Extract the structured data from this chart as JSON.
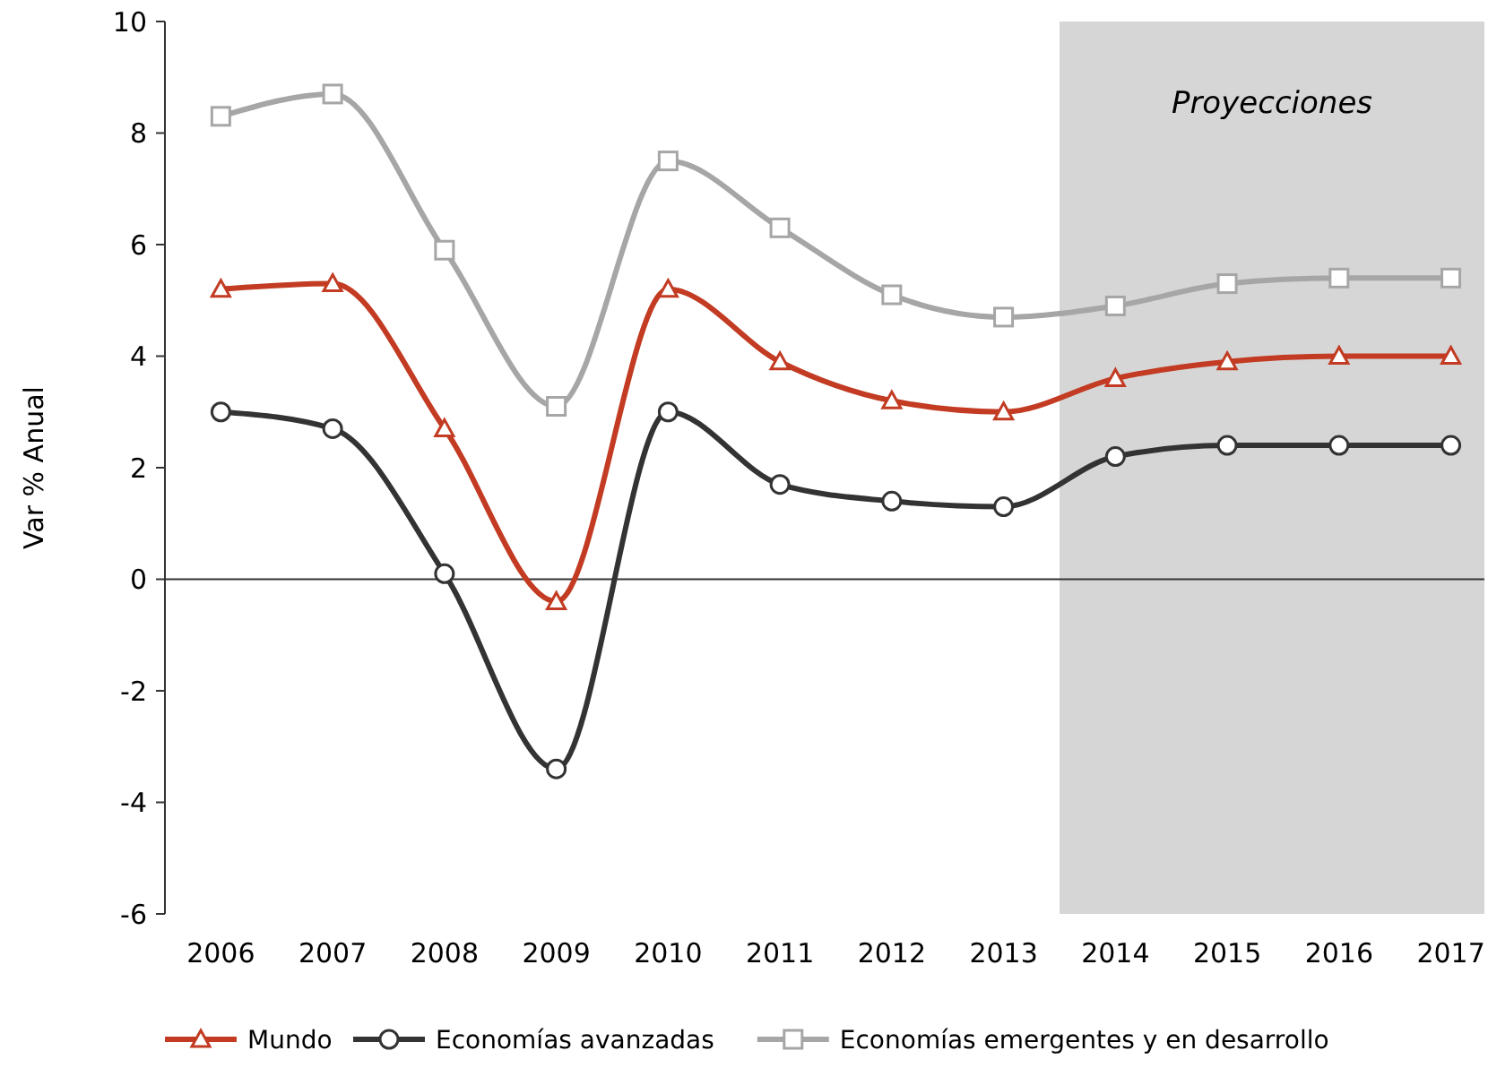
{
  "chart_data": {
    "type": "line",
    "ylabel": "Var % Anual",
    "x": [
      2006,
      2007,
      2008,
      2009,
      2010,
      2011,
      2012,
      2013,
      2014,
      2015,
      2016,
      2017
    ],
    "xlim": [
      2005.5,
      2017.3
    ],
    "xticks": [
      2006,
      2007,
      2008,
      2009,
      2010,
      2011,
      2012,
      2013,
      2014,
      2015,
      2016,
      2017
    ],
    "ylim": [
      -6,
      10
    ],
    "yticks": [
      -6,
      -4,
      -2,
      0,
      2,
      4,
      6,
      8,
      10
    ],
    "grid": false,
    "ref_lines": [
      {
        "axis": "y",
        "value": 0,
        "color": "#333333"
      }
    ],
    "legend": "bottom",
    "line_style": "solid",
    "bands": [
      {
        "axis": "x",
        "from": 2013.5,
        "to": 2017.3,
        "label": "Proyecciones",
        "color": "#d6d6d6"
      }
    ],
    "series": [
      {
        "name": "Mundo",
        "color": "#c23b22",
        "marker": "triangle",
        "values": [
          5.2,
          5.3,
          2.7,
          -0.4,
          5.2,
          3.9,
          3.2,
          3.0,
          3.6,
          3.9,
          4.0,
          4.0
        ]
      },
      {
        "name": "Economías avanzadas",
        "color": "#333333",
        "marker": "circle",
        "values": [
          3.0,
          2.7,
          0.1,
          -3.4,
          3.0,
          1.7,
          1.4,
          1.3,
          2.2,
          2.4,
          2.4,
          2.4
        ]
      },
      {
        "name": "Economías emergentes y en desarrollo",
        "color": "#a6a6a6",
        "marker": "square",
        "values": [
          8.3,
          8.7,
          5.9,
          3.1,
          7.5,
          6.3,
          5.1,
          4.7,
          4.9,
          5.3,
          5.4,
          5.4
        ]
      }
    ]
  }
}
